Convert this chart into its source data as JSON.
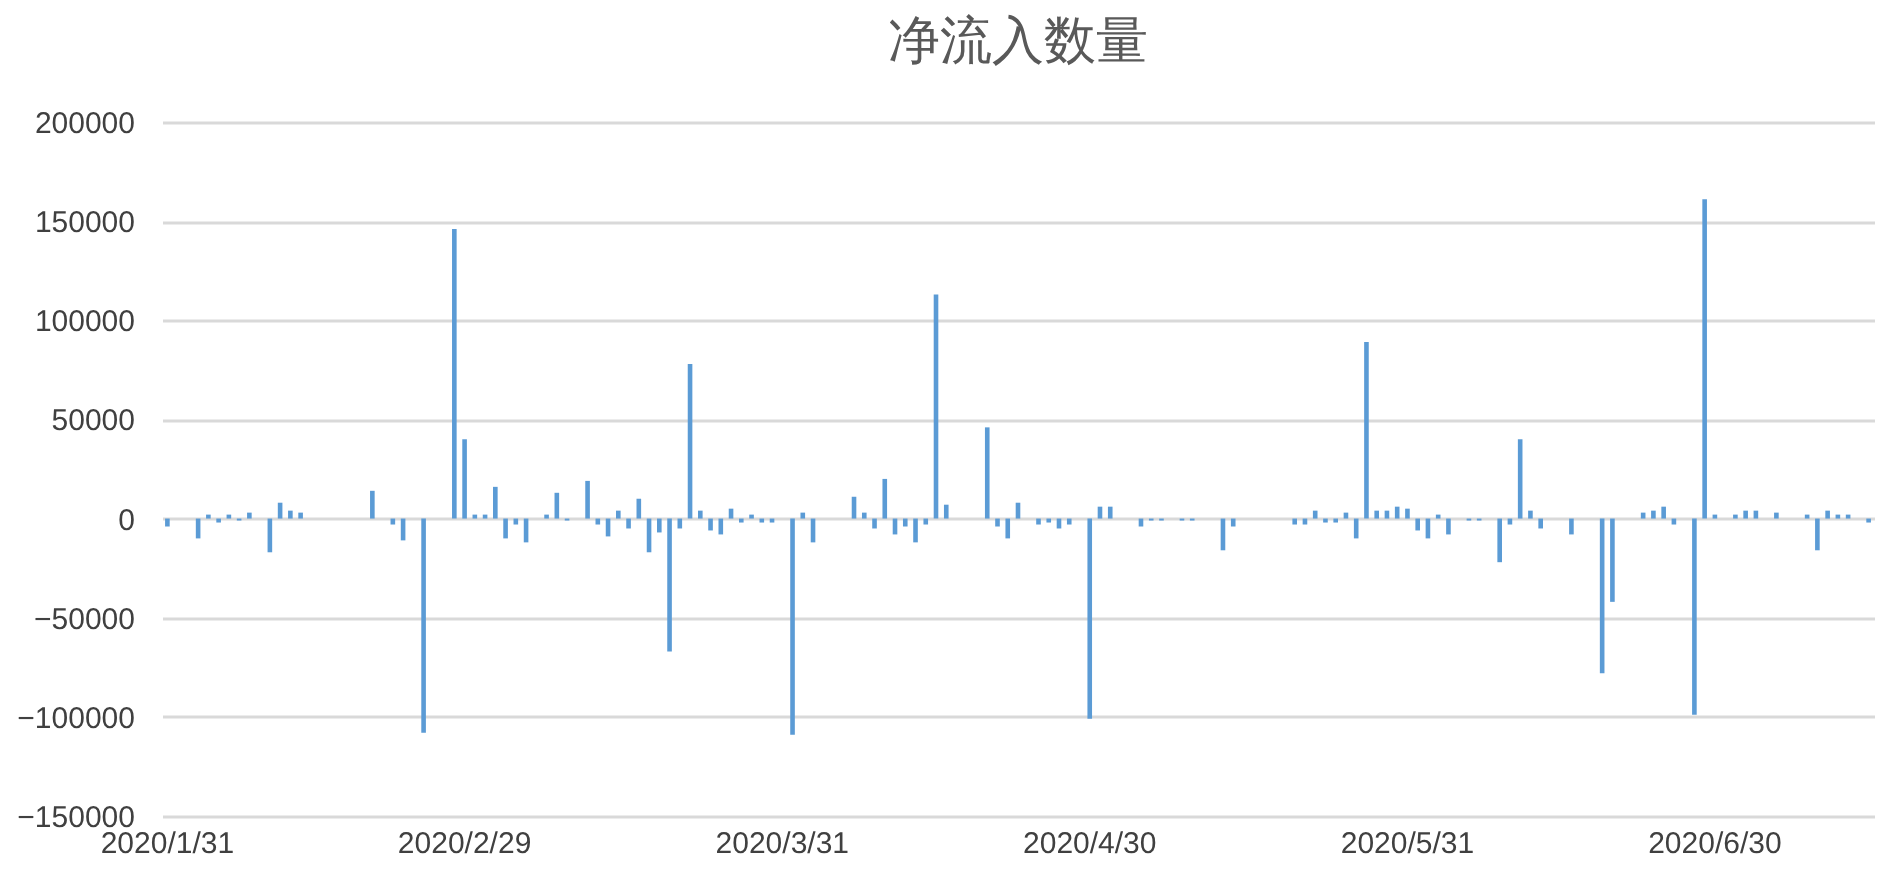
{
  "chart_data": {
    "type": "bar",
    "title": "净流入数量",
    "categories": [
      "2020/1/31",
      null,
      null,
      null,
      null,
      null,
      null,
      null,
      null,
      null,
      null,
      null,
      null,
      null,
      null,
      null,
      null,
      null,
      null,
      null,
      null,
      null,
      null,
      null,
      null,
      null,
      null,
      null,
      null,
      "2020/2/29",
      null,
      null,
      null,
      null,
      null,
      null,
      null,
      null,
      null,
      null,
      null,
      null,
      null,
      null,
      null,
      null,
      null,
      null,
      null,
      null,
      null,
      null,
      null,
      null,
      null,
      null,
      null,
      null,
      null,
      null,
      "2020/3/31",
      null,
      null,
      null,
      null,
      null,
      null,
      null,
      null,
      null,
      null,
      null,
      null,
      null,
      null,
      null,
      null,
      null,
      null,
      null,
      null,
      null,
      null,
      null,
      null,
      null,
      null,
      null,
      null,
      null,
      "2020/4/30",
      null,
      null,
      null,
      null,
      null,
      null,
      null,
      null,
      null,
      null,
      null,
      null,
      null,
      null,
      null,
      null,
      null,
      null,
      null,
      null,
      null,
      null,
      null,
      null,
      null,
      null,
      null,
      null,
      null,
      null,
      "2020/5/31",
      null,
      null,
      null,
      null,
      null,
      null,
      null,
      null,
      null,
      null,
      null,
      null,
      null,
      null,
      null,
      null,
      null,
      null,
      null,
      null,
      null,
      null,
      null,
      null,
      null,
      null,
      null,
      null,
      null,
      "2020/6/30",
      null,
      null,
      null,
      null,
      null,
      null,
      null,
      null,
      null,
      null,
      null,
      null,
      null,
      null,
      null
    ],
    "ylim": [
      -150000,
      200000
    ],
    "yticks": [
      -150000,
      -100000,
      -50000,
      0,
      50000,
      100000,
      150000,
      200000
    ],
    "grid": "y",
    "legend": false,
    "series": [
      {
        "color": "#5b9bd5",
        "values": [
          -4000,
          null,
          null,
          -10000,
          2000,
          -2000,
          2000,
          -1000,
          3000,
          null,
          -17000,
          8000,
          4000,
          3000,
          null,
          null,
          null,
          null,
          null,
          null,
          14000,
          null,
          -3000,
          -11000,
          null,
          -108000,
          null,
          null,
          146000,
          40000,
          2000,
          2000,
          16000,
          -10000,
          -3000,
          -12000,
          null,
          2000,
          13000,
          -1000,
          null,
          19000,
          -3000,
          -9000,
          4000,
          -5000,
          10000,
          -17000,
          -7000,
          -67000,
          -5000,
          78000,
          4000,
          -6000,
          -8000,
          5000,
          -2000,
          2000,
          -2000,
          -2000,
          null,
          -109000,
          3000,
          -12000,
          null,
          null,
          null,
          11000,
          3000,
          -5000,
          20000,
          -8000,
          -4000,
          -12000,
          -3000,
          113000,
          7000,
          null,
          null,
          null,
          46000,
          -4000,
          -10000,
          8000,
          null,
          -3000,
          -2000,
          -5000,
          -3000,
          null,
          -101000,
          6000,
          6000,
          null,
          null,
          -4000,
          -1000,
          -1000,
          null,
          -1000,
          -1000,
          null,
          null,
          -16000,
          -4000,
          null,
          null,
          null,
          null,
          null,
          -3000,
          -3000,
          4000,
          -2000,
          -2000,
          3000,
          -10000,
          89000,
          4000,
          4000,
          6000,
          5000,
          -6000,
          -10000,
          2000,
          -8000,
          null,
          -1000,
          -1000,
          null,
          -22000,
          -3000,
          40000,
          4000,
          -5000,
          null,
          null,
          -8000,
          null,
          null,
          -78000,
          -42000,
          null,
          null,
          3000,
          4000,
          6000,
          -3000,
          null,
          -99000,
          161000,
          2000,
          null,
          2000,
          4000,
          4000,
          null,
          3000,
          null,
          null,
          2000,
          -16000,
          4000,
          2000,
          2000,
          null,
          -2000
        ]
      }
    ]
  }
}
